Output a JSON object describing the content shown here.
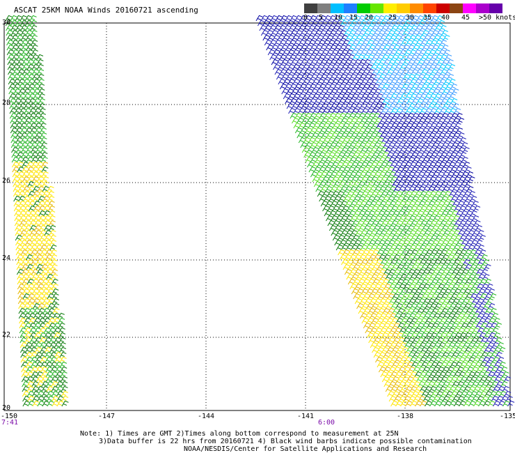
{
  "title": "ASCAT 25KM NOAA Winds 20160721 ascending",
  "legend": {
    "colors": [
      "#404040",
      "#7f7f7f",
      "#00bfff",
      "#1f7fff",
      "#00cc00",
      "#66e600",
      "#ffee00",
      "#ffcc00",
      "#ff8c00",
      "#ff4400",
      "#cc0000",
      "#8b4513",
      "#ff00ff",
      "#aa00cc",
      "#6600aa"
    ],
    "labels": [
      "0",
      "5",
      "10",
      "15",
      "20",
      "25",
      "30",
      "35",
      "40",
      "45",
      ">50 knots"
    ]
  },
  "axes": {
    "x_ticks": [
      "-150",
      "-147",
      "-144",
      "-141",
      "-138",
      "-135"
    ],
    "y_ticks": [
      "30",
      "28",
      "26",
      "24",
      "22",
      "20"
    ],
    "x_range": [
      -150,
      -135
    ],
    "y_range": [
      20,
      30
    ]
  },
  "times": [
    "7:41",
    "6:00"
  ],
  "notes": [
    "Note: 1) Times are GMT 2)Times along bottom correspond to measurement at 25N",
    "3)Data buffer is 22 hrs from 20160721 4) Black wind barbs indicate possible contamination",
    "NOAA/NESDIS/Center for Satellite Applications and Research"
  ]
}
